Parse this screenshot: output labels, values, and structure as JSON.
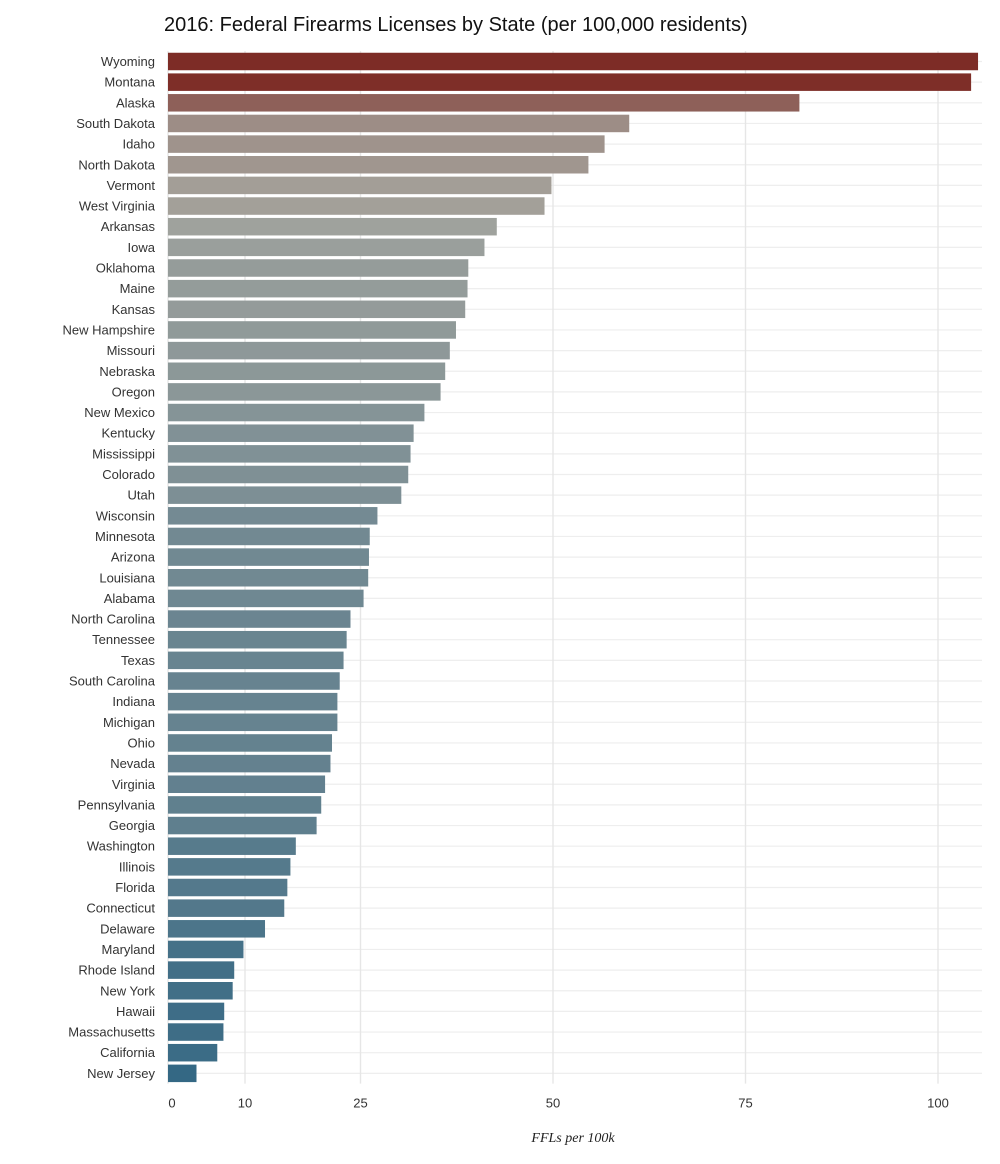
{
  "chart_data": {
    "type": "bar",
    "orientation": "horizontal",
    "title": "2016: Federal Firearms Licenses by State (per 100,000 residents)",
    "xlabel": "FFLs per 100k",
    "ylabel": "",
    "xlim": [
      0,
      105
    ],
    "xticks": [
      0,
      10,
      25,
      50,
      75,
      100
    ],
    "grid": true,
    "legend": "none",
    "color_scale": {
      "low": "#2a6282",
      "mid": "#a5a59e",
      "high": "#7d2c26"
    },
    "categories": [
      "Wyoming",
      "Montana",
      "Alaska",
      "South Dakota",
      "Idaho",
      "North Dakota",
      "Vermont",
      "West Virginia",
      "Arkansas",
      "Iowa",
      "Oklahoma",
      "Maine",
      "Kansas",
      "New Hampshire",
      "Missouri",
      "Nebraska",
      "Oregon",
      "New Mexico",
      "Kentucky",
      "Mississippi",
      "Colorado",
      "Utah",
      "Wisconsin",
      "Minnesota",
      "Arizona",
      "Louisiana",
      "Alabama",
      "North Carolina",
      "Tennessee",
      "Texas",
      "South Carolina",
      "Indiana",
      "Michigan",
      "Ohio",
      "Nevada",
      "Virginia",
      "Pennsylvania",
      "Georgia",
      "Washington",
      "Illinois",
      "Florida",
      "Connecticut",
      "Delaware",
      "Maryland",
      "Rhode Island",
      "New York",
      "Hawaii",
      "Massachusetts",
      "California",
      "New Jersey"
    ],
    "values": [
      105.2,
      104.3,
      82.0,
      59.9,
      56.7,
      54.6,
      49.8,
      48.9,
      42.7,
      41.1,
      39.0,
      38.9,
      38.6,
      37.4,
      36.6,
      36.0,
      35.4,
      33.3,
      31.9,
      31.5,
      31.2,
      30.3,
      27.2,
      26.2,
      26.1,
      26.0,
      25.4,
      23.7,
      23.2,
      22.8,
      22.3,
      22.0,
      22.0,
      21.3,
      21.1,
      20.4,
      19.9,
      19.3,
      16.6,
      15.9,
      15.5,
      15.1,
      12.6,
      9.8,
      8.6,
      8.4,
      7.3,
      7.2,
      6.4,
      3.7
    ]
  }
}
